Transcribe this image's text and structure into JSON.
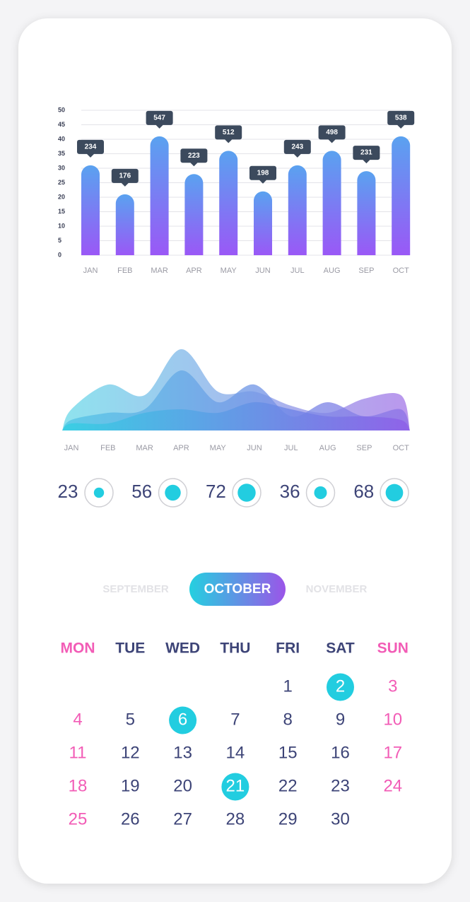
{
  "chart_data": [
    {
      "type": "bar",
      "categories": [
        "JAN",
        "FEB",
        "MAR",
        "APR",
        "MAY",
        "JUN",
        "JUL",
        "AUG",
        "SEP",
        "OCT"
      ],
      "values": [
        31,
        21,
        41,
        28,
        36,
        22,
        31,
        36,
        29,
        41
      ],
      "callouts": [
        234,
        176,
        547,
        223,
        512,
        198,
        243,
        498,
        231,
        538
      ],
      "ylim": [
        0,
        50
      ],
      "yticks": [
        0,
        5,
        10,
        15,
        20,
        25,
        30,
        35,
        40,
        45,
        50
      ],
      "grid": true,
      "colors": [
        "#5aa2f0",
        "#9a58f6"
      ]
    },
    {
      "type": "area",
      "categories": [
        "JAN",
        "FEB",
        "MAR",
        "APR",
        "MAY",
        "JUN",
        "JUL",
        "AUG",
        "SEP",
        "OCT"
      ],
      "ylim": [
        0,
        130
      ],
      "series": [
        {
          "colors": [
            "#6fdbe9",
            "#a77ae8"
          ],
          "values": [
            30,
            65,
            50,
            115,
            55,
            55,
            35,
            25,
            45,
            50
          ]
        },
        {
          "colors": [
            "#52c6e6",
            "#8f72e6"
          ],
          "values": [
            15,
            25,
            30,
            85,
            40,
            65,
            20,
            40,
            20,
            30
          ]
        },
        {
          "colors": [
            "#2fd0e3",
            "#8d5ce8"
          ],
          "values": [
            10,
            10,
            25,
            30,
            25,
            40,
            30,
            20,
            20,
            15
          ]
        }
      ]
    },
    {
      "type": "gauge",
      "values": [
        23,
        56,
        72,
        36,
        68
      ],
      "ylim": [
        0,
        100
      ],
      "color": "#22cde0"
    }
  ],
  "calendar": {
    "months": [
      "SEPTEMBER",
      "OCTOBER",
      "NOVEMBER"
    ],
    "selected": 1,
    "weekdays": [
      "MON",
      "TUE",
      "WED",
      "THU",
      "FRI",
      "SAT",
      "SUN"
    ],
    "first_weekday": 4,
    "days": [
      1,
      2,
      3,
      4,
      5,
      6,
      7,
      8,
      9,
      10,
      11,
      12,
      13,
      14,
      15,
      16,
      17,
      18,
      19,
      20,
      21,
      22,
      23,
      24,
      25,
      26,
      27,
      28,
      29,
      30
    ],
    "highlighted": [
      2,
      6,
      21
    ]
  }
}
